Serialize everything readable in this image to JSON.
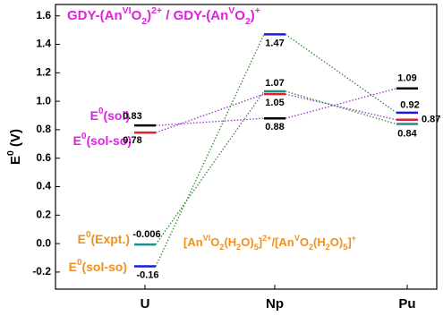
{
  "chart_data": {
    "type": "energy-level",
    "categories": [
      "U",
      "Np",
      "Pu"
    ],
    "ylabel": [
      "E",
      {
        "sup": "0"
      },
      " (V)"
    ],
    "ylim": [
      -0.32,
      1.68
    ],
    "yticks": [
      -0.2,
      {
        "value": 0,
        "label": "0.0"
      },
      0.2,
      0.4,
      0.6,
      0.8,
      {
        "value": 1,
        "label": "1.0"
      },
      1.2,
      1.4,
      1.6
    ],
    "groups": [
      {
        "title": [
          "GDY-(An",
          {
            "sup": "VI"
          },
          "O",
          {
            "sub": "2"
          },
          ")",
          {
            "sup": "2+"
          },
          " / GDY-(An",
          {
            "sup": "V"
          },
          "O",
          {
            "sub": "2"
          },
          ")",
          {
            "sup": "+"
          }
        ],
        "color": "#e020e0",
        "line_color": "#9b30d0",
        "series": [
          {
            "name": [
              "E",
              {
                "sup": "0"
              },
              "(sol)"
            ],
            "color": "#000000",
            "values": [
              0.83,
              0.88,
              1.09
            ]
          },
          {
            "name": [
              "E",
              {
                "sup": "0"
              },
              "(sol-so)"
            ],
            "color": "#e0202a",
            "values": [
              0.78,
              1.05,
              0.87
            ]
          }
        ]
      },
      {
        "title": [
          "[An",
          {
            "sup": "VI"
          },
          "O",
          {
            "sub": "2"
          },
          "(H",
          {
            "sub": "2"
          },
          "O)",
          {
            "sub": "5"
          },
          "]",
          {
            "sup": "2+"
          },
          "/[An",
          {
            "sup": "V"
          },
          "O",
          {
            "sub": "2"
          },
          "(H",
          {
            "sub": "2"
          },
          "O)",
          {
            "sub": "5"
          },
          "]",
          {
            "sup": "+"
          }
        ],
        "color": "#f0901e",
        "line_color": "#2e8b2e",
        "series": [
          {
            "name": [
              "E",
              {
                "sup": "0"
              },
              "(Expt.)"
            ],
            "color": "#1f8f8f",
            "values": [
              -0.006,
              1.07,
              0.84
            ]
          },
          {
            "name": [
              "E",
              {
                "sup": "0"
              },
              "(sol-so)"
            ],
            "color": "#1a1ae0",
            "values": [
              -0.16,
              1.47,
              0.92
            ]
          }
        ]
      }
    ]
  }
}
